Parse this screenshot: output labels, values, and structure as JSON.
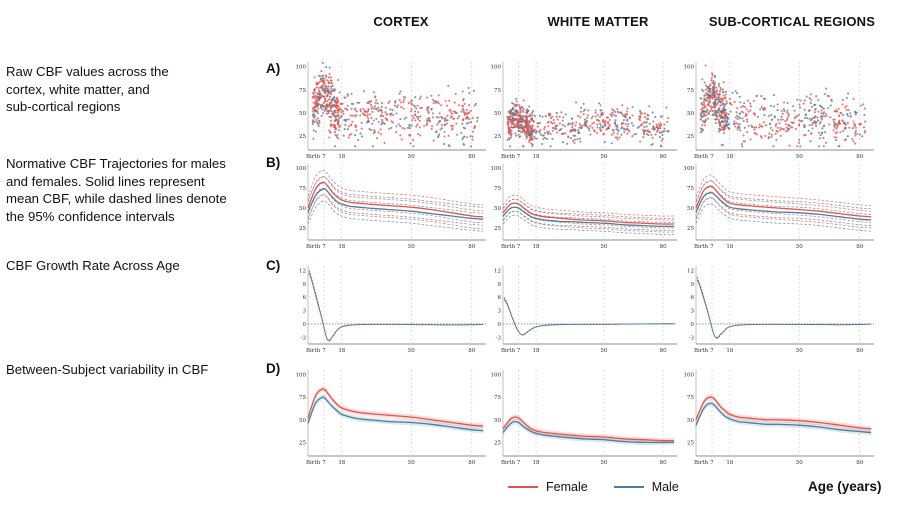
{
  "columns": [
    "CORTEX",
    "WHITE MATTER",
    "SUB-CORTICAL REGIONS"
  ],
  "rows": [
    {
      "label": "A)",
      "description": [
        "Raw CBF values across the",
        "cortex, white matter, and",
        "sub-cortical regions"
      ]
    },
    {
      "label": "B)",
      "description": [
        "Normative CBF Trajectories for males",
        "and females. Solid lines represent",
        "mean CBF, while dashed lines denote",
        "the 95% confidence intervals"
      ]
    },
    {
      "label": "C)",
      "description": [
        "CBF Growth Rate Across Age"
      ]
    },
    {
      "label": "D)",
      "description": [
        "Between-Subject variability in CBF"
      ]
    }
  ],
  "legend": {
    "items": [
      {
        "label": "Female",
        "color": "#e8514a"
      },
      {
        "label": "Male",
        "color": "#4a7f9c"
      }
    ]
  },
  "x_axis_title": "Age (years)",
  "chart_data": [
    {
      "row": "A",
      "type": "scatter",
      "x_ticks": [
        "Birth",
        "7",
        "18",
        "50",
        "80"
      ],
      "x_tick_values": [
        0,
        7,
        18,
        50,
        80
      ],
      "xlim": [
        0,
        85
      ],
      "y_ticks": [
        "25",
        "50",
        "75",
        "100"
      ],
      "y_tick_values": [
        25,
        50,
        75,
        100
      ],
      "ylim": [
        10,
        105
      ],
      "series": [
        {
          "name": "Female",
          "color": "#e8514a"
        },
        {
          "name": "Male",
          "color": "#4a7f9c"
        }
      ],
      "panels": [
        {
          "region": "CORTEX",
          "data_summary": {
            "peak_x": 7,
            "peak_y": 75,
            "adult_mean": 45,
            "spread": 14
          }
        },
        {
          "region": "WHITE MATTER",
          "data_summary": {
            "peak_x": 5,
            "peak_y": 45,
            "adult_mean": 33,
            "spread": 9
          }
        },
        {
          "region": "SUB-CORTICAL REGIONS",
          "data_summary": {
            "peak_x": 7,
            "peak_y": 70,
            "adult_mean": 42,
            "spread": 13
          }
        }
      ]
    },
    {
      "row": "B",
      "type": "line",
      "x_ticks": [
        "Birth",
        "7",
        "18",
        "50",
        "80"
      ],
      "x_tick_values": [
        0,
        7,
        18,
        50,
        80
      ],
      "xlim": [
        0,
        85
      ],
      "y_ticks": [
        "25",
        "50",
        "75",
        "100"
      ],
      "y_tick_values": [
        25,
        50,
        75,
        100
      ],
      "ylim": [
        10,
        105
      ],
      "x": [
        0,
        3,
        5,
        7,
        9,
        12,
        15,
        18,
        22,
        26,
        30,
        35,
        40,
        50,
        60,
        70,
        80,
        84
      ],
      "panels": [
        {
          "region": "CORTEX",
          "series": [
            {
              "name": "Female",
              "color": "#e8514a",
              "values": [
                50,
                72,
                80,
                82,
                78,
                70,
                64,
                60,
                57,
                56,
                55,
                54,
                53,
                51,
                48,
                44,
                40,
                39
              ],
              "ci_width": 15
            },
            {
              "name": "Male",
              "color": "#4a7f9c",
              "values": [
                45,
                64,
                71,
                74,
                71,
                64,
                58,
                55,
                52,
                51,
                50,
                49,
                48,
                46,
                43,
                40,
                37,
                36
              ],
              "ci_width": 15
            }
          ]
        },
        {
          "region": "WHITE MATTER",
          "series": [
            {
              "name": "Female",
              "color": "#e8514a",
              "values": [
                44,
                54,
                56,
                55,
                52,
                47,
                43,
                41,
                39,
                38,
                37,
                36,
                35,
                34,
                32,
                31,
                30,
                30
              ],
              "ci_width": 10
            },
            {
              "name": "Male",
              "color": "#4a7f9c",
              "values": [
                40,
                49,
                51,
                50,
                47,
                43,
                39,
                37,
                35,
                34,
                33,
                33,
                32,
                31,
                29,
                28,
                27,
                27
              ],
              "ci_width": 10
            }
          ]
        },
        {
          "region": "SUB-CORTICAL REGIONS",
          "series": [
            {
              "name": "Female",
              "color": "#e8514a",
              "values": [
                50,
                70,
                76,
                77,
                73,
                66,
                60,
                56,
                54,
                53,
                52,
                51,
                50,
                48,
                46,
                43,
                40,
                39
              ],
              "ci_width": 14
            },
            {
              "name": "Male",
              "color": "#4a7f9c",
              "values": [
                45,
                63,
                68,
                69,
                66,
                60,
                55,
                51,
                49,
                48,
                47,
                46,
                45,
                44,
                42,
                39,
                36,
                35
              ],
              "ci_width": 14
            }
          ]
        }
      ]
    },
    {
      "row": "C",
      "type": "line",
      "x_ticks": [
        "Birth",
        "7",
        "18",
        "50",
        "80"
      ],
      "x_tick_values": [
        0,
        7,
        18,
        50,
        80
      ],
      "xlim": [
        0,
        85
      ],
      "y_ticks": [
        "-3",
        "0",
        "3",
        "6",
        "9",
        "12"
      ],
      "y_tick_values": [
        -3,
        0,
        3,
        6,
        9,
        12
      ],
      "ylim": [
        -4.5,
        13
      ],
      "zero_line": true,
      "panels": [
        {
          "region": "CORTEX",
          "x": [
            0.5,
            2,
            4,
            6,
            7.5,
            9,
            10.5,
            12,
            14,
            16,
            18,
            22,
            28,
            40,
            50,
            60,
            70,
            80,
            84
          ],
          "series": [
            {
              "name": "Female",
              "color": "#e8514a",
              "values": [
                12,
                9.5,
                5.5,
                1.5,
                -1.5,
                -3.5,
                -3.8,
                -3.0,
                -2.0,
                -1.2,
                -0.7,
                -0.3,
                -0.15,
                -0.1,
                -0.15,
                -0.2,
                -0.25,
                -0.2,
                -0.1
              ]
            },
            {
              "name": "Male",
              "color": "#4a7f9c",
              "values": [
                11.5,
                9.0,
                5.0,
                1.3,
                -1.6,
                -3.4,
                -3.6,
                -2.9,
                -1.9,
                -1.1,
                -0.6,
                -0.25,
                -0.1,
                -0.08,
                -0.12,
                -0.18,
                -0.22,
                -0.18,
                -0.1
              ]
            }
          ]
        },
        {
          "region": "WHITE MATTER",
          "x": [
            0.5,
            2,
            4,
            6,
            8,
            10,
            12,
            14,
            16,
            18,
            22,
            30,
            40,
            50,
            60,
            70,
            80,
            84
          ],
          "series": [
            {
              "name": "Female",
              "color": "#e8514a",
              "values": [
                6,
                4.5,
                1.8,
                -0.8,
                -2.2,
                -2.5,
                -2.0,
                -1.5,
                -1.0,
                -0.7,
                -0.35,
                -0.15,
                -0.1,
                -0.1,
                -0.05,
                0,
                0.05,
                0.05
              ]
            },
            {
              "name": "Male",
              "color": "#4a7f9c",
              "values": [
                5.6,
                4.2,
                1.6,
                -0.9,
                -2.2,
                -2.4,
                -1.9,
                -1.4,
                -0.95,
                -0.65,
                -0.3,
                -0.12,
                -0.08,
                -0.08,
                -0.04,
                0,
                0.04,
                0.04
              ]
            }
          ]
        },
        {
          "region": "SUB-CORTICAL REGIONS",
          "x": [
            0.5,
            2,
            4,
            6,
            7.5,
            9,
            10.5,
            12,
            14,
            16,
            18,
            22,
            28,
            40,
            50,
            60,
            70,
            80,
            84
          ],
          "series": [
            {
              "name": "Female",
              "color": "#e8514a",
              "values": [
                10.5,
                8.5,
                5.0,
                1.2,
                -1.5,
                -3.0,
                -3.2,
                -2.6,
                -1.8,
                -1.1,
                -0.65,
                -0.3,
                -0.15,
                -0.1,
                -0.12,
                -0.15,
                -0.2,
                -0.15,
                -0.05
              ]
            },
            {
              "name": "Male",
              "color": "#4a7f9c",
              "values": [
                10.0,
                8.0,
                4.6,
                1.0,
                -1.6,
                -2.9,
                -3.0,
                -2.4,
                -1.7,
                -1.0,
                -0.6,
                -0.25,
                -0.1,
                -0.08,
                -0.1,
                -0.12,
                -0.16,
                -0.12,
                -0.04
              ]
            }
          ]
        }
      ]
    },
    {
      "row": "D",
      "type": "line",
      "x_ticks": [
        "Birth",
        "7",
        "18",
        "50",
        "80"
      ],
      "x_tick_values": [
        0,
        7,
        18,
        50,
        80
      ],
      "xlim": [
        0,
        85
      ],
      "y_ticks": [
        "25",
        "50",
        "75",
        "100"
      ],
      "y_tick_values": [
        25,
        50,
        75,
        100
      ],
      "ylim": [
        10,
        105
      ],
      "x": [
        0,
        3,
        5,
        7,
        9,
        12,
        15,
        18,
        22,
        26,
        30,
        35,
        40,
        50,
        60,
        70,
        80,
        84
      ],
      "panels": [
        {
          "region": "CORTEX",
          "series": [
            {
              "name": "Female",
              "color": "#e8514a",
              "values": [
                52,
                75,
                82,
                84,
                80,
                73,
                67,
                63,
                60,
                58,
                57,
                56,
                55,
                53,
                50,
                47,
                44,
                43
              ]
            },
            {
              "name": "Male",
              "color": "#4a7f9c",
              "values": [
                46,
                67,
                73,
                75,
                71,
                65,
                60,
                56,
                53,
                51,
                50,
                49,
                48,
                47,
                45,
                42,
                39,
                38
              ]
            }
          ]
        },
        {
          "region": "WHITE MATTER",
          "series": [
            {
              "name": "Female",
              "color": "#e8514a",
              "values": [
                40,
                50,
                53,
                52,
                49,
                44,
                40,
                38,
                36,
                35,
                34,
                33,
                32,
                31,
                29,
                28,
                27,
                27
              ]
            },
            {
              "name": "Male",
              "color": "#4a7f9c",
              "values": [
                36,
                45,
                48,
                47,
                44,
                40,
                37,
                35,
                33,
                32,
                31,
                30,
                29,
                28,
                26,
                25,
                25,
                25
              ]
            }
          ]
        },
        {
          "region": "SUB-CORTICAL REGIONS",
          "series": [
            {
              "name": "Female",
              "color": "#e8514a",
              "values": [
                50,
                68,
                74,
                75,
                72,
                65,
                60,
                56,
                53,
                52,
                51,
                50,
                50,
                49,
                47,
                44,
                41,
                40
              ]
            },
            {
              "name": "Male",
              "color": "#4a7f9c",
              "values": [
                44,
                61,
                67,
                68,
                65,
                59,
                54,
                51,
                48,
                47,
                46,
                45,
                45,
                44,
                42,
                39,
                37,
                36
              ]
            }
          ]
        }
      ]
    }
  ]
}
